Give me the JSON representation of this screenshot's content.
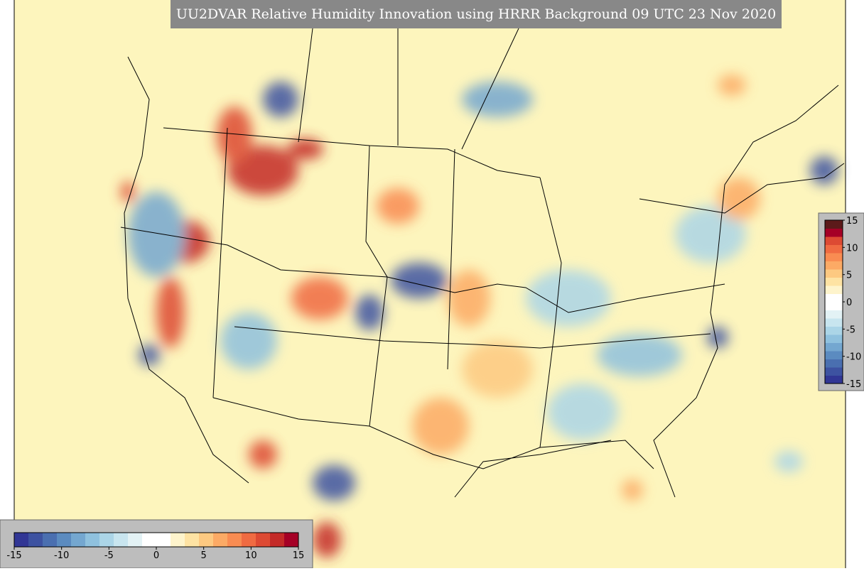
{
  "title": "UU2DVAR Relative Humidity Innovation using HRRR Background 09 UTC 23 Nov 2020",
  "colorbars": [
    {
      "orientation": "horizontal",
      "lim": [
        -15,
        15
      ],
      "ticks": [
        -15,
        -10,
        -5,
        0,
        5,
        10,
        15
      ],
      "colors": [
        "#313695",
        "#3d52a1",
        "#4a6fb0",
        "#5b8bc0",
        "#74a7d0",
        "#8fc1de",
        "#abd5e7",
        "#c8e5ef",
        "#e3f2f5",
        "#ffffff",
        "#ffffff",
        "#fef4cc",
        "#fee3a3",
        "#fdc981",
        "#fcaa65",
        "#f98c52",
        "#f06b42",
        "#dd4a33",
        "#c42a28",
        "#a50026"
      ]
    },
    {
      "orientation": "vertical",
      "lim": [
        -15,
        15
      ],
      "ticks": [
        -15,
        -10,
        -5,
        0,
        5,
        10,
        15
      ],
      "colors": [
        "#313695",
        "#3d52a1",
        "#4a6fb0",
        "#5b8bc0",
        "#74a7d0",
        "#8fc1de",
        "#abd5e7",
        "#c8e5ef",
        "#e3f2f5",
        "#ffffff",
        "#ffffff",
        "#fef4cc",
        "#fee3a3",
        "#fdc981",
        "#fcaa65",
        "#f98c52",
        "#f06b42",
        "#dd4a33",
        "#a50026",
        "#5c1a1a"
      ]
    }
  ]
}
